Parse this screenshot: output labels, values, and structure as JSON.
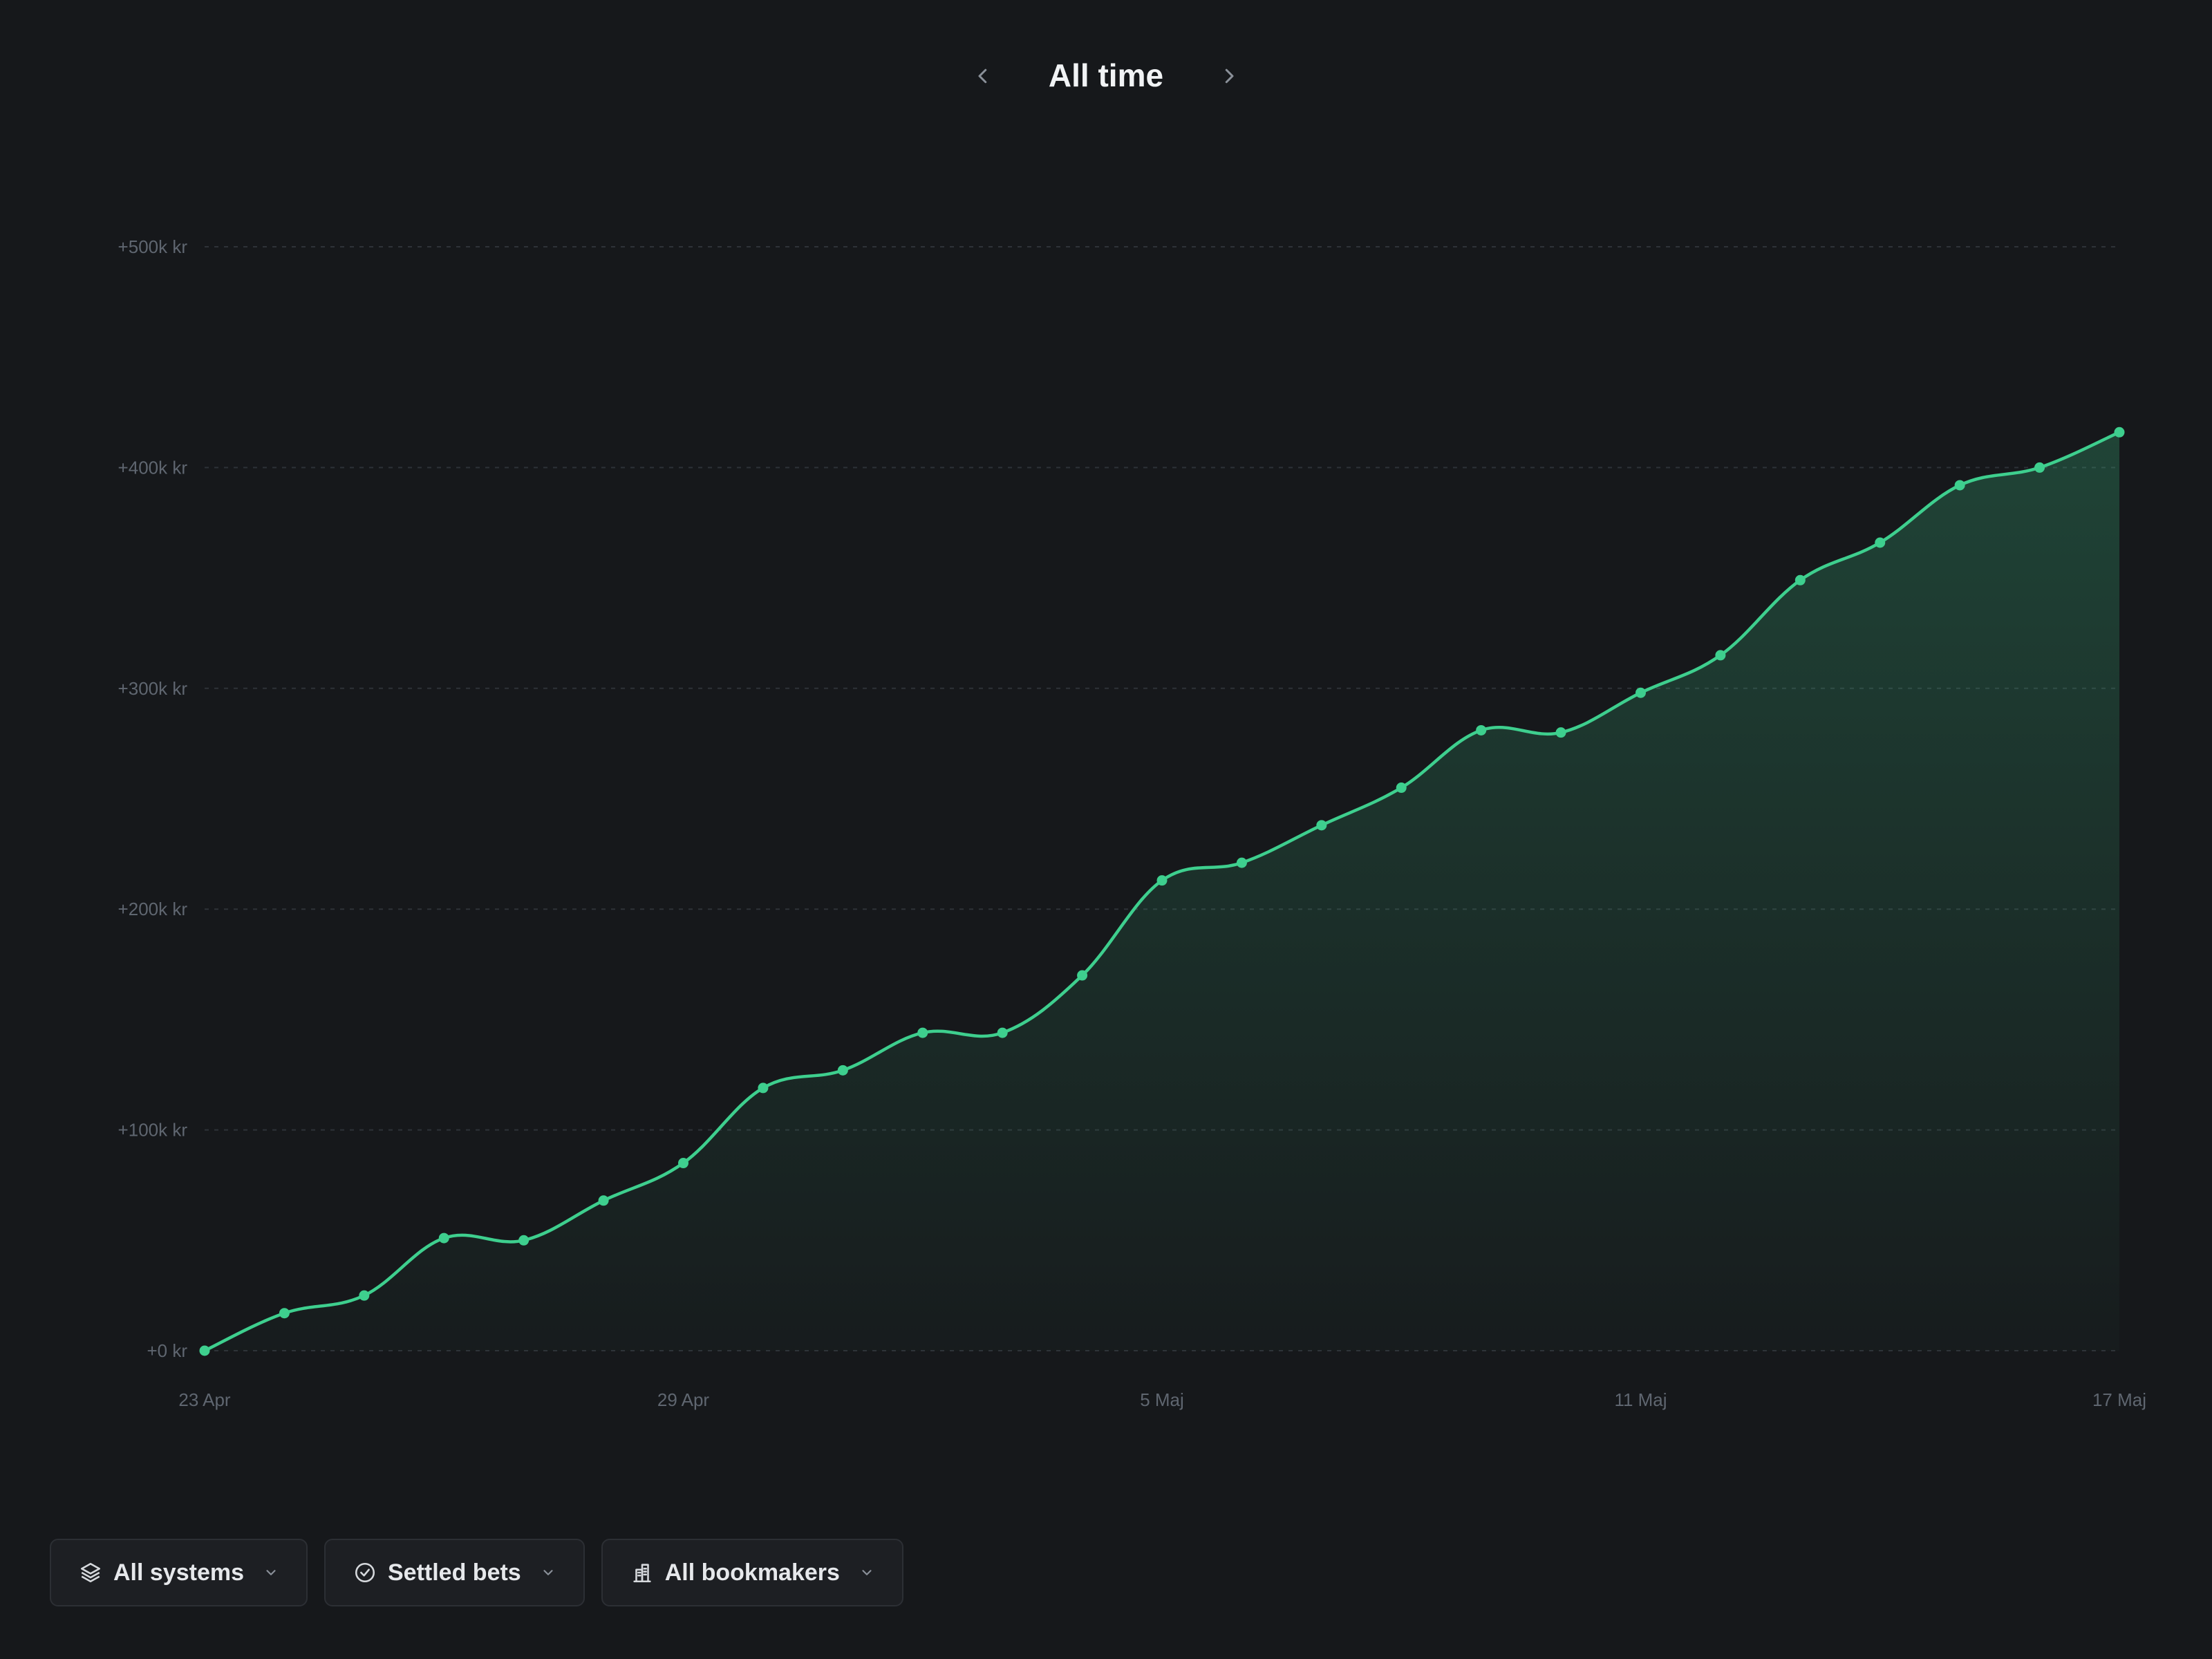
{
  "header": {
    "title": "All time",
    "prev_icon": "chevron-left-icon",
    "next_icon": "chevron-right-icon"
  },
  "colors": {
    "background": "#16181b",
    "line": "#3ecf8e",
    "grid": "#2e3238",
    "tick_text": "#5f6670"
  },
  "chart_data": {
    "type": "area",
    "title": "",
    "xlabel": "",
    "ylabel": "",
    "ylim": [
      0,
      500000
    ],
    "y_ticks": [
      {
        "value": 0,
        "label": "+0 kr"
      },
      {
        "value": 100000,
        "label": "+100k kr"
      },
      {
        "value": 200000,
        "label": "+200k kr"
      },
      {
        "value": 300000,
        "label": "+300k kr"
      },
      {
        "value": 400000,
        "label": "+400k kr"
      },
      {
        "value": 500000,
        "label": "+500k kr"
      }
    ],
    "x_ticks": [
      {
        "date": "23 Apr",
        "label": "23 Apr"
      },
      {
        "date": "29 Apr",
        "label": "29 Apr"
      },
      {
        "date": "5 Maj",
        "label": "5 Maj"
      },
      {
        "date": "11 Maj",
        "label": "11 Maj"
      },
      {
        "date": "17 Maj",
        "label": "17 Maj"
      }
    ],
    "grid": true,
    "legend": "none",
    "series": [
      {
        "x": [
          "23 Apr",
          "24 Apr",
          "25 Apr",
          "26 Apr",
          "27 Apr",
          "28 Apr",
          "29 Apr",
          "30 Apr",
          "1 Maj",
          "2 Maj",
          "3 Maj",
          "4 Maj",
          "5 Maj",
          "6 Maj",
          "7 Maj",
          "8 Maj",
          "9 Maj",
          "10 Maj",
          "11 Maj",
          "12 Maj",
          "13 Maj",
          "14 Maj",
          "15 Maj",
          "16 Maj",
          "17 Maj"
        ],
        "values": [
          0,
          17000,
          25000,
          51000,
          50000,
          68000,
          85000,
          119000,
          127000,
          144000,
          144000,
          170000,
          213000,
          221000,
          238000,
          255000,
          281000,
          280000,
          298000,
          315000,
          349000,
          366000,
          392000,
          400000,
          416000
        ]
      }
    ]
  },
  "filters": [
    {
      "label": "All systems",
      "icon": "layers-icon",
      "chevron": "chevron-down-icon"
    },
    {
      "label": "Settled bets",
      "icon": "check-circle-icon",
      "chevron": "chevron-down-icon"
    },
    {
      "label": "All bookmakers",
      "icon": "bank-icon",
      "chevron": "chevron-down-icon"
    }
  ]
}
